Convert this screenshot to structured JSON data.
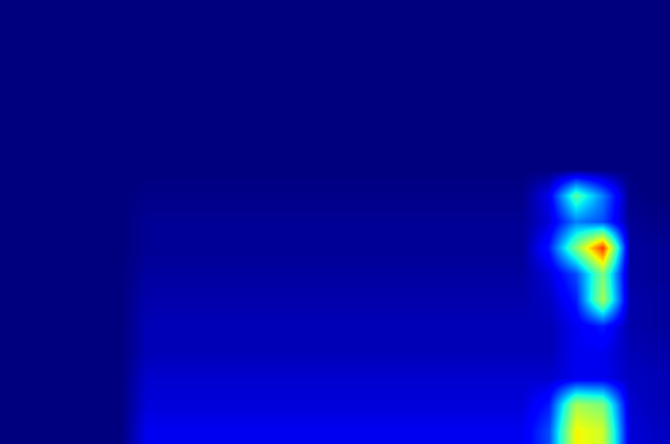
{
  "chart_data": {
    "type": "heatmap",
    "tick_labels": false,
    "zlim": [
      0,
      1
    ],
    "cells": [
      [
        0,
        0,
        0,
        0,
        0,
        0,
        0,
        0,
        0,
        0,
        0,
        0,
        0,
        0,
        0,
        0,
        0,
        0,
        0,
        0,
        0,
        0,
        0,
        0,
        0
      ],
      [
        0,
        0,
        0,
        0,
        0,
        0,
        0,
        0,
        0,
        0,
        0,
        0,
        0,
        0,
        0,
        0,
        0,
        0,
        0,
        0,
        0,
        0,
        0,
        0,
        0
      ],
      [
        0,
        0,
        0,
        0,
        0,
        0,
        0,
        0,
        0,
        0,
        0,
        0,
        0,
        0,
        0,
        0,
        0,
        0,
        0,
        0,
        0,
        0,
        0,
        0,
        0
      ],
      [
        0,
        0,
        0,
        0,
        0,
        0,
        0,
        0,
        0,
        0,
        0,
        0,
        0,
        0,
        0,
        0,
        0,
        0,
        0,
        0,
        0,
        0,
        0,
        0,
        0
      ],
      [
        0,
        0,
        0,
        0,
        0,
        0,
        0,
        0,
        0,
        0,
        0,
        0,
        0,
        0,
        0,
        0,
        0,
        0,
        0,
        0,
        0,
        0,
        0,
        0,
        0
      ],
      [
        0,
        0,
        0,
        0,
        0,
        0,
        0,
        0,
        0,
        0,
        0,
        0,
        0,
        0,
        0,
        0,
        0,
        0,
        0,
        0,
        0,
        0,
        0,
        0,
        0
      ],
      [
        0,
        0,
        0,
        0,
        0,
        0,
        0,
        0,
        0,
        0,
        0,
        0,
        0,
        0,
        0,
        0,
        0,
        0,
        0,
        0,
        0,
        0,
        0,
        0,
        0
      ],
      [
        0,
        0,
        0,
        0,
        0,
        0.01,
        0.01,
        0.01,
        0.01,
        0.01,
        0.01,
        0.01,
        0.01,
        0.01,
        0.01,
        0.01,
        0.01,
        0.01,
        0.01,
        0.01,
        0.1,
        0.45,
        0.25,
        0.01,
        0
      ],
      [
        0,
        0,
        0,
        0,
        0,
        0.02,
        0.02,
        0.02,
        0.02,
        0.02,
        0.02,
        0.02,
        0.02,
        0.02,
        0.02,
        0.02,
        0.02,
        0.02,
        0.02,
        0.02,
        0.08,
        0.25,
        0.2,
        0.02,
        0.01
      ],
      [
        0,
        0,
        0,
        0,
        0,
        0.02,
        0.02,
        0.02,
        0.02,
        0.02,
        0.02,
        0.02,
        0.02,
        0.02,
        0.02,
        0.02,
        0.02,
        0.02,
        0.02,
        0.02,
        0.15,
        0.5,
        0.85,
        0.03,
        0.02
      ],
      [
        0,
        0,
        0,
        0,
        0,
        0.03,
        0.03,
        0.03,
        0.03,
        0.03,
        0.03,
        0.03,
        0.03,
        0.03,
        0.03,
        0.03,
        0.03,
        0.03,
        0.03,
        0.03,
        0.08,
        0.2,
        0.5,
        0.03,
        0.02
      ],
      [
        0,
        0,
        0,
        0,
        0,
        0.04,
        0.04,
        0.04,
        0.04,
        0.04,
        0.04,
        0.04,
        0.04,
        0.04,
        0.04,
        0.04,
        0.04,
        0.04,
        0.04,
        0.04,
        0.06,
        0.15,
        0.55,
        0.04,
        0.03
      ],
      [
        0,
        0,
        0,
        0,
        0,
        0.05,
        0.05,
        0.05,
        0.05,
        0.05,
        0.05,
        0.05,
        0.05,
        0.05,
        0.05,
        0.05,
        0.05,
        0.05,
        0.05,
        0.05,
        0.05,
        0.1,
        0.15,
        0.04,
        0.03
      ],
      [
        0,
        0,
        0,
        0,
        0,
        0.05,
        0.05,
        0.05,
        0.05,
        0.05,
        0.05,
        0.05,
        0.05,
        0.05,
        0.05,
        0.05,
        0.05,
        0.05,
        0.05,
        0.05,
        0.05,
        0.1,
        0.1,
        0.05,
        0.04
      ],
      [
        0,
        0,
        0,
        0,
        0,
        0.07,
        0.07,
        0.07,
        0.07,
        0.07,
        0.07,
        0.07,
        0.07,
        0.07,
        0.07,
        0.07,
        0.07,
        0.07,
        0.07,
        0.07,
        0.07,
        0.1,
        0.1,
        0.06,
        0.05
      ],
      [
        0,
        0,
        0,
        0,
        0,
        0.08,
        0.08,
        0.08,
        0.08,
        0.08,
        0.08,
        0.08,
        0.08,
        0.08,
        0.08,
        0.08,
        0.08,
        0.08,
        0.08,
        0.08,
        0.15,
        0.55,
        0.5,
        0.07,
        0.05
      ],
      [
        0,
        0,
        0,
        0,
        0,
        0.1,
        0.1,
        0.1,
        0.1,
        0.1,
        0.1,
        0.1,
        0.1,
        0.1,
        0.1,
        0.1,
        0.1,
        0.1,
        0.1,
        0.1,
        0.2,
        0.65,
        0.6,
        0.08,
        0.06
      ]
    ]
  }
}
